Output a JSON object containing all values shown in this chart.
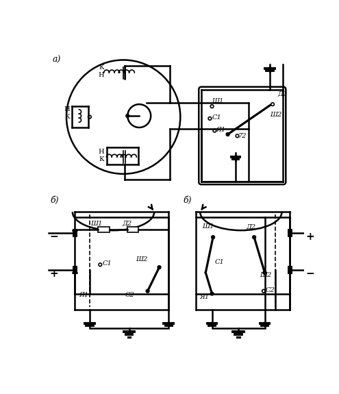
{
  "bg_color": "#ffffff",
  "line_color": "#000000",
  "label_a": "а)",
  "label_b1": "б)",
  "label_b2": "б)",
  "fs_main": 9,
  "fs_small": 7,
  "lw_main": 1.8,
  "lw_thin": 1.2
}
